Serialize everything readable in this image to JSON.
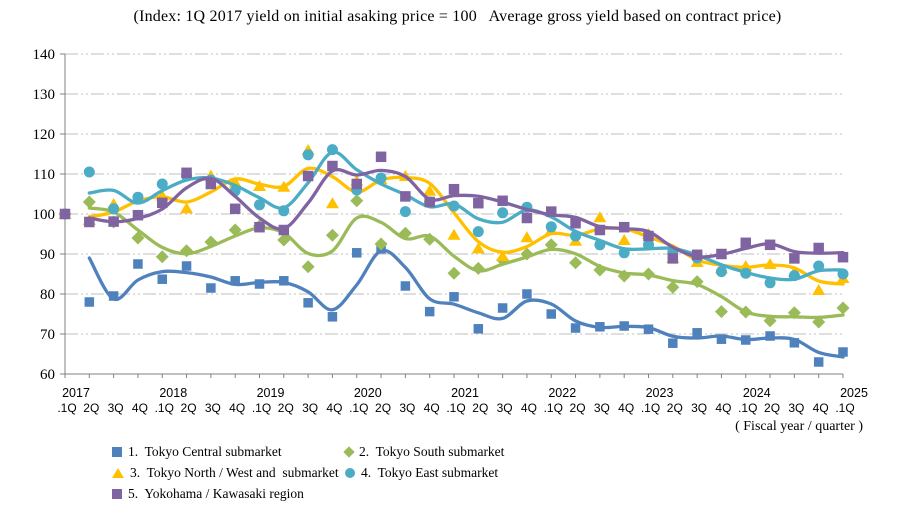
{
  "title": "(Index: 1Q 2017 yield on initial asaking price = 100   Average gross yield based on contract price)",
  "x_axis_note": "( Fiscal year / quarter )",
  "legend": {
    "items": [
      {
        "label": "1.  Tokyo Central submarket",
        "marker": "square",
        "color": "#4F81BD"
      },
      {
        "label": "2.  Tokyo South submarket",
        "marker": "diamond",
        "color": "#9BBB59"
      },
      {
        "label": "3.  Tokyo North / West and  submarket",
        "marker": "triangle",
        "color": "#FFC000"
      },
      {
        "label": "4.  Tokyo East submarket",
        "marker": "circle",
        "color": "#4BACC6"
      },
      {
        "label": "5.  Yokohama / Kawasaki region",
        "marker": "square",
        "color": "#8064A2"
      }
    ]
  },
  "chart_data": {
    "type": "line",
    "title": "(Index: 1Q 2017 yield on initial asaking price = 100   Average gross yield based on contract price)",
    "xlabel": "( Fiscal year / quarter )",
    "ylabel": "",
    "ylim": [
      60,
      140
    ],
    "ytick_step": 10,
    "yticks": [
      140,
      130,
      120,
      110,
      100,
      90,
      80,
      70,
      60
    ],
    "grid": "horizontal-dash-dot",
    "legend_position": "bottom",
    "trendline": "2-period moving average, smoothed, per series",
    "x_years": [
      "2017",
      "2018",
      "2019",
      "2020",
      "2021",
      "2022",
      "2023",
      "2024",
      "2025"
    ],
    "x_quarter_labels": [
      ".1Q",
      "2Q",
      "3Q",
      "4Q",
      ".1Q",
      "2Q",
      "3Q",
      "4Q",
      ".1Q",
      "2Q",
      "3Q",
      "4Q",
      ".1Q",
      "2Q",
      "3Q",
      "4Q",
      ".1Q",
      "2Q",
      "3Q",
      "4Q",
      ".1Q",
      "2Q",
      "3Q",
      "4Q",
      ".1Q",
      "2Q",
      "3Q",
      "4Q",
      ".1Q",
      "2Q",
      "3Q",
      "4Q",
      ".1Q"
    ],
    "series": [
      {
        "name": "1. Tokyo Central submarket",
        "marker": "square",
        "color": "#4F81BD",
        "values": [
          100,
          78,
          79.5,
          87.5,
          83.7,
          87,
          81.5,
          83.3,
          82.5,
          83.3,
          77.8,
          74.3,
          90.3,
          91.3,
          82,
          75.6,
          79.3,
          71.3,
          76.5,
          80,
          75,
          71.5,
          71.8,
          72,
          71.2,
          67.7,
          70.3,
          68.7,
          68.5,
          69.5,
          67.8,
          63,
          65.5
        ]
      },
      {
        "name": "2. Tokyo South submarket",
        "marker": "diamond",
        "color": "#9BBB59",
        "values": [
          100,
          103,
          98,
          94,
          89.3,
          90.8,
          93,
          96,
          97,
          93.5,
          86.8,
          94.7,
          103.3,
          92.5,
          95.2,
          93.7,
          85.2,
          86.4,
          88.5,
          90,
          92.3,
          87.8,
          86,
          84.5,
          85,
          81.7,
          83.1,
          75.6,
          75.5,
          73.3,
          75.3,
          73,
          76.5
        ]
      },
      {
        "name": "3. Tokyo North / West and submarket",
        "marker": "triangle",
        "color": "#FFC000",
        "values": [
          100,
          98.5,
          102.5,
          104,
          104.6,
          101.4,
          109.6,
          107.9,
          107,
          106.8,
          116,
          102.7,
          108.3,
          108.7,
          109.5,
          105.8,
          94.8,
          91.4,
          89.5,
          94.2,
          96,
          93.3,
          99.2,
          93.5,
          95,
          89,
          88,
          86.4,
          87,
          87.5,
          85.5,
          81,
          84
        ]
      },
      {
        "name": "4. Tokyo East submarket",
        "marker": "circle",
        "color": "#4BACC6",
        "values": [
          100,
          110.5,
          101.3,
          104.2,
          107.5,
          109.5,
          108.5,
          105.8,
          102.3,
          100.8,
          114.8,
          116.1,
          106,
          109,
          100.6,
          103,
          102,
          95.6,
          100.3,
          101.7,
          96.8,
          94.5,
          92.3,
          90.3,
          92.3,
          90.5,
          89,
          85.6,
          85.2,
          82.8,
          84.6,
          87,
          85
        ]
      },
      {
        "name": "5. Yokohama / Kawasaki region",
        "marker": "square",
        "color": "#8064A2",
        "values": [
          100,
          98,
          98.1,
          99.7,
          102.8,
          110.3,
          107.5,
          101.3,
          96.7,
          96,
          109.5,
          112,
          107.5,
          114.3,
          104.4,
          103,
          106.2,
          102.7,
          103.3,
          99,
          100.6,
          97.7,
          96,
          96.7,
          94.5,
          88.9,
          89.8,
          90,
          92.8,
          92.3,
          88.9,
          91.5,
          89.2
        ]
      }
    ]
  },
  "style": {
    "axis_color": "#808080",
    "gridline_color": "#BFBFBF",
    "text_color": "#000000"
  }
}
